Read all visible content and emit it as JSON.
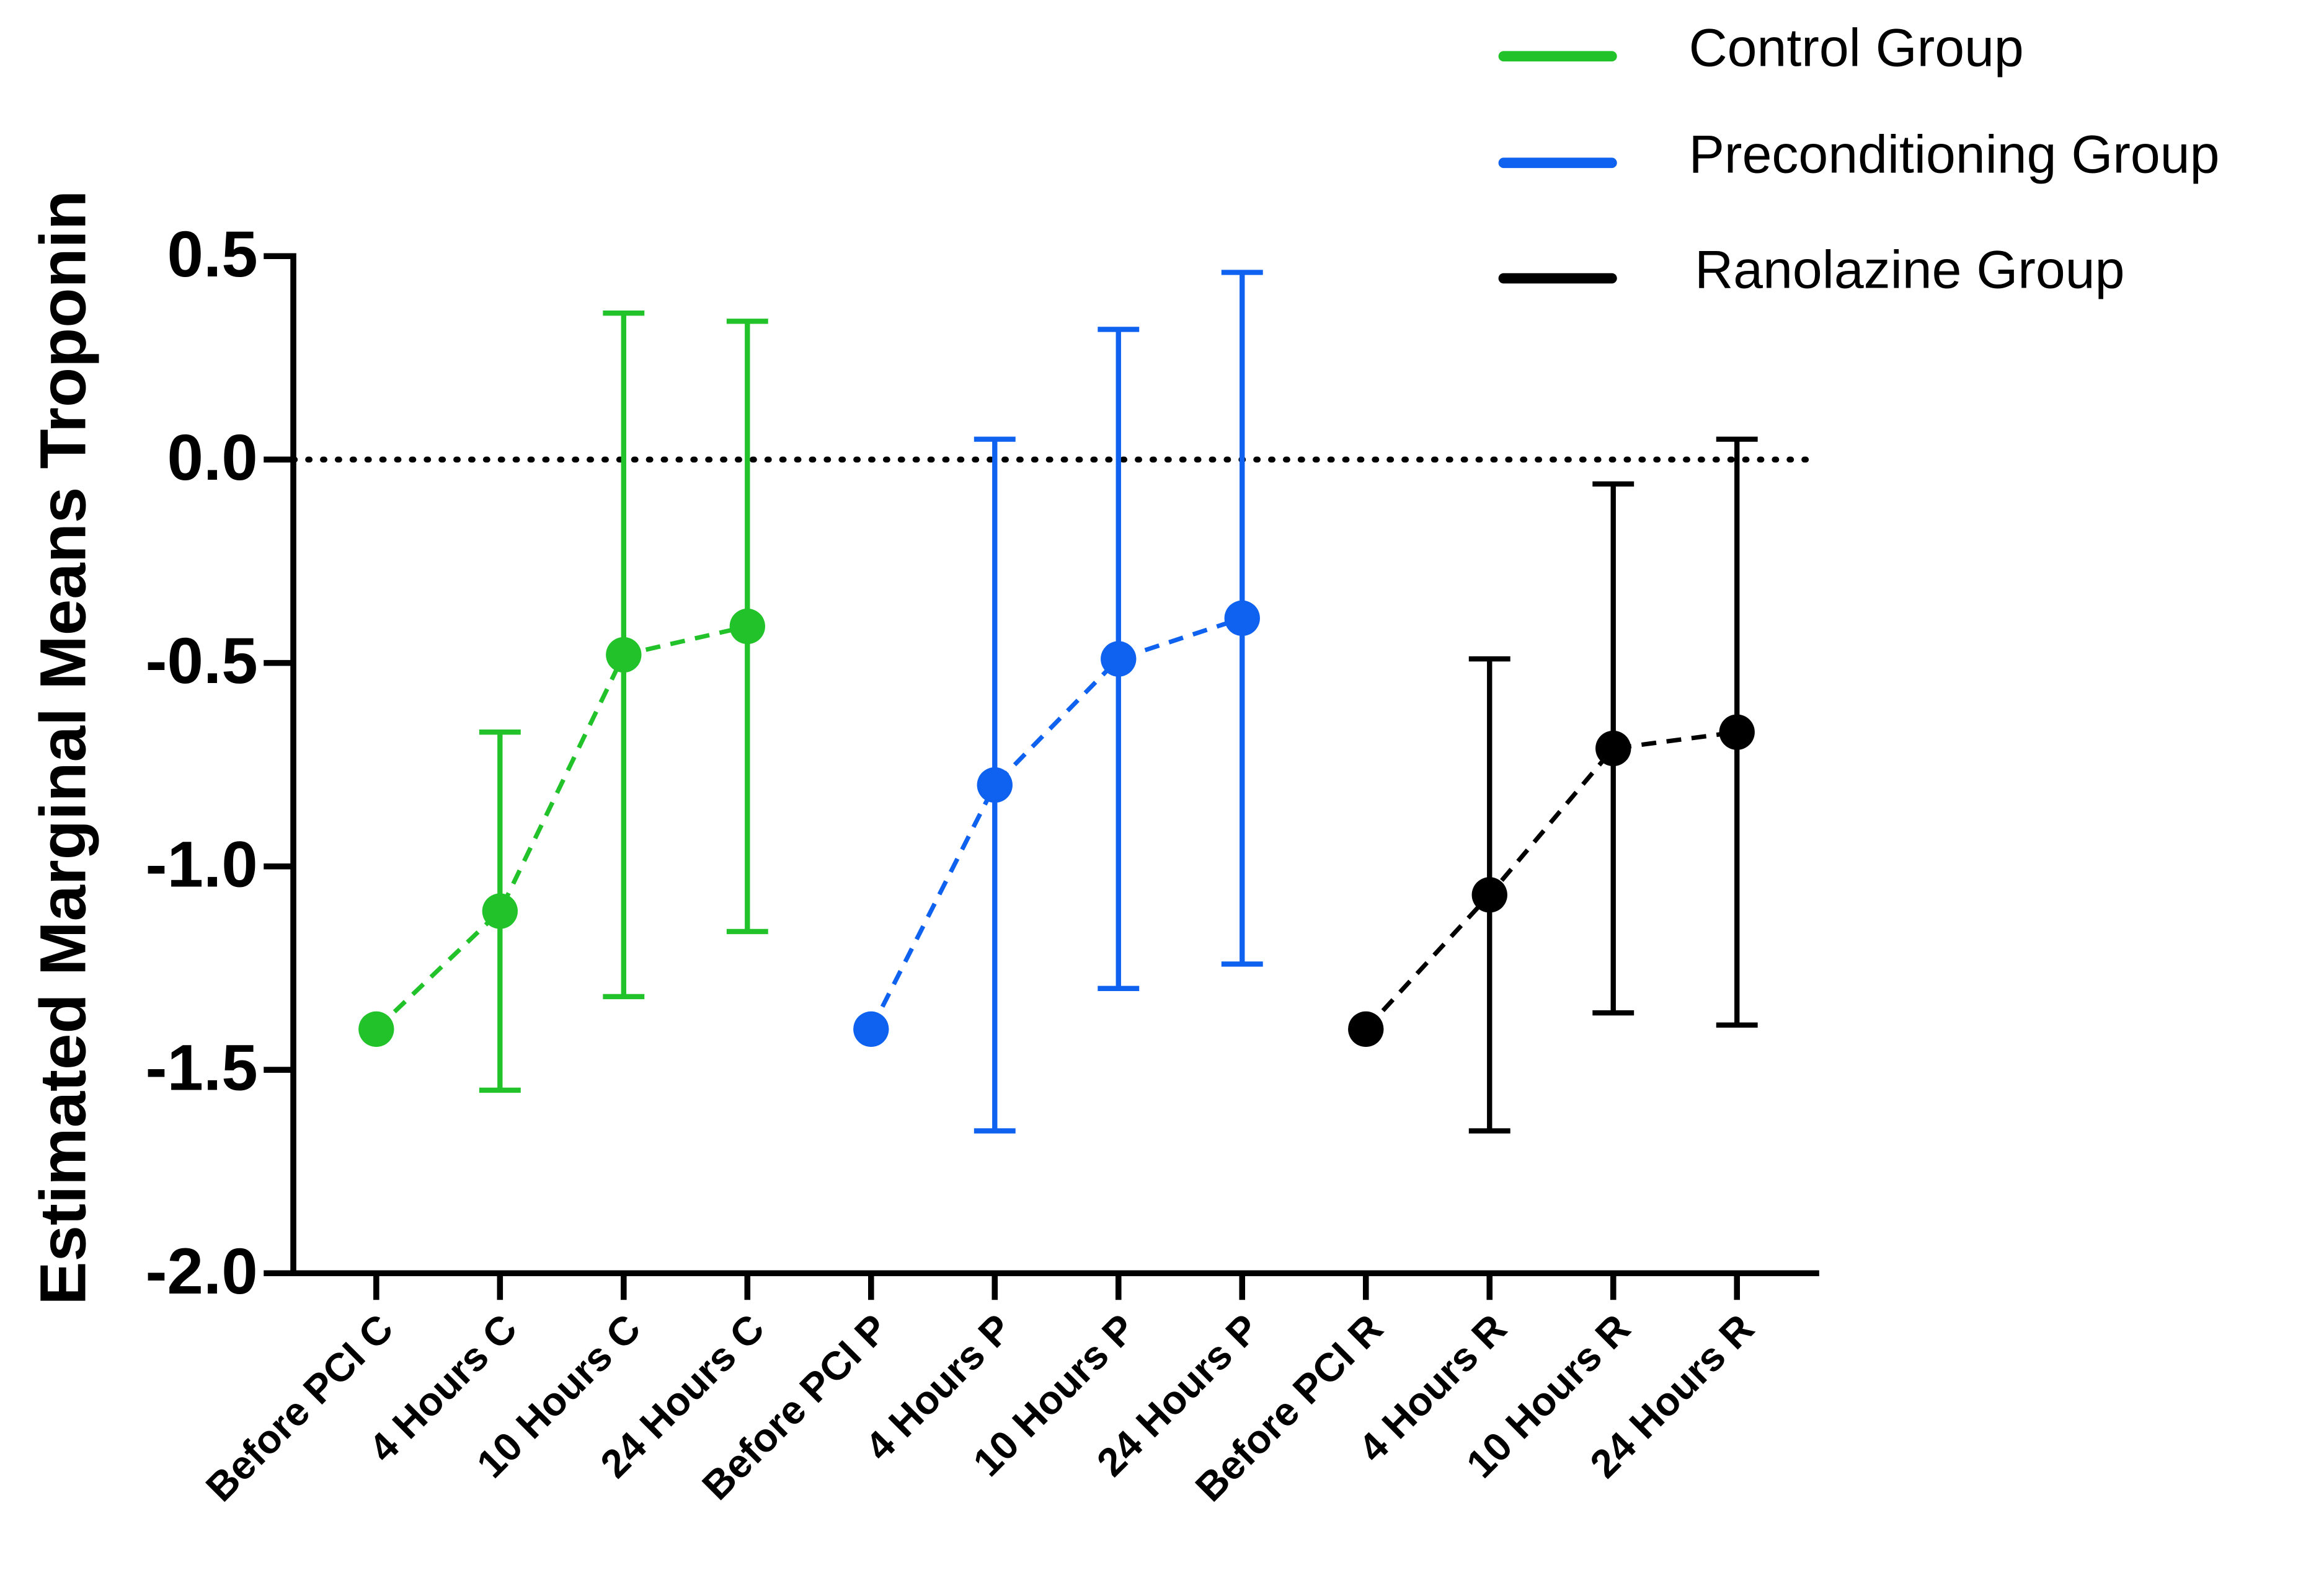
{
  "chart_data": {
    "type": "line",
    "y_label": "Estimated Marginal Means Troponin",
    "categories": [
      "Before PCI C",
      "4 Hours C",
      "10 Hours C",
      "24 Hours C",
      "Before PCI P",
      "4 Hours P",
      "10 Hours P",
      "24 Hours P",
      "Before PCI R",
      "4 Hours R",
      "10 Hours R",
      "24 Hours R"
    ],
    "series": [
      {
        "name": "Control Group",
        "color": "#22c32a",
        "values": [
          -1.4,
          -1.11,
          -0.48,
          -0.41,
          null,
          null,
          null,
          null,
          null,
          null,
          null,
          null
        ],
        "errors": [
          null,
          0.44,
          0.84,
          0.75,
          null,
          null,
          null,
          null,
          null,
          null,
          null,
          null
        ]
      },
      {
        "name": "Preconditioning Group",
        "color": "#0f62f0",
        "values": [
          null,
          null,
          null,
          null,
          -1.4,
          -0.8,
          -0.49,
          -0.39,
          null,
          null,
          null,
          null
        ],
        "errors": [
          null,
          null,
          null,
          null,
          null,
          0.85,
          0.81,
          0.85,
          null,
          null,
          null,
          null
        ]
      },
      {
        "name": "Ranolazine Group",
        "color": "#000000",
        "values": [
          null,
          null,
          null,
          null,
          null,
          null,
          null,
          null,
          -1.4,
          -1.07,
          -0.71,
          -0.67
        ],
        "errors": [
          null,
          null,
          null,
          null,
          null,
          null,
          null,
          null,
          null,
          0.58,
          0.65,
          0.72
        ]
      }
    ],
    "ylim": [
      -2,
      0.5
    ],
    "yticks": [
      0.5,
      {
        "value": 0,
        "label": "0.0"
      },
      -0.5,
      {
        "value": -1,
        "label": "-1.0"
      },
      -1.5,
      {
        "value": -2,
        "label": "-2.0"
      }
    ],
    "reference_line": 0,
    "line_style": "dashed",
    "legend": "top-right"
  }
}
